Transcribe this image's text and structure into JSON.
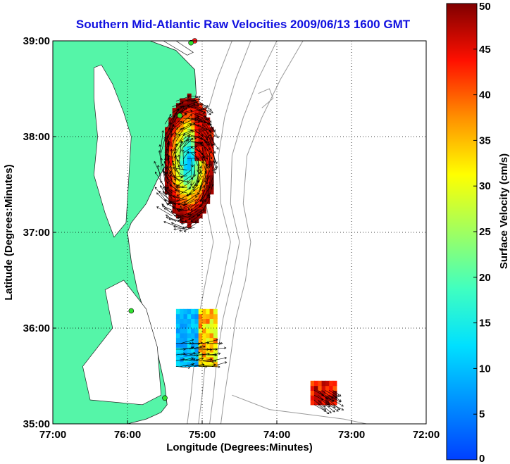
{
  "chart_data": {
    "type": "heatmap",
    "title": "Southern Mid-Atlantic Raw Velocities 2009/06/13 1600 GMT",
    "xlabel": "Longitude (Degrees:Minutes)",
    "ylabel": "Latitude (Degrees:Minutes)",
    "colorbar_label": "Surface Velocity (cm/s)",
    "xlim": [
      -77,
      -72
    ],
    "ylim": [
      35,
      39
    ],
    "clim": [
      0,
      50
    ],
    "x_ticks": [
      {
        "value": -77,
        "label": "77:00"
      },
      {
        "value": -76,
        "label": "76:00"
      },
      {
        "value": -75,
        "label": "75:00"
      },
      {
        "value": -74,
        "label": "74:00"
      },
      {
        "value": -73,
        "label": "73:00"
      },
      {
        "value": -72,
        "label": "72:00"
      }
    ],
    "y_ticks": [
      {
        "value": 35,
        "label": "35:00"
      },
      {
        "value": 36,
        "label": "36:00"
      },
      {
        "value": 37,
        "label": "37:00"
      },
      {
        "value": 38,
        "label": "38:00"
      },
      {
        "value": 39,
        "label": "39:00"
      }
    ],
    "colorbar_ticks": [
      {
        "value": 0,
        "label": "0"
      },
      {
        "value": 5,
        "label": "5"
      },
      {
        "value": 10,
        "label": "10"
      },
      {
        "value": 15,
        "label": "15"
      },
      {
        "value": 20,
        "label": "20"
      },
      {
        "value": 25,
        "label": "25"
      },
      {
        "value": 30,
        "label": "30"
      },
      {
        "value": 35,
        "label": "35"
      },
      {
        "value": 40,
        "label": "40"
      },
      {
        "value": 45,
        "label": "45"
      },
      {
        "value": 50,
        "label": "50"
      }
    ],
    "grid": true,
    "grid_style": "dotted",
    "land_color": "#55f5a8",
    "colormap": "jet",
    "coastline": [
      [
        -77.0,
        39.0
      ],
      [
        -75.7,
        39.0
      ],
      [
        -75.35,
        38.9
      ],
      [
        -75.1,
        38.7
      ],
      [
        -75.08,
        38.45
      ],
      [
        -75.15,
        38.2
      ],
      [
        -75.3,
        37.95
      ],
      [
        -75.45,
        37.75
      ],
      [
        -75.6,
        37.55
      ],
      [
        -75.75,
        37.3
      ],
      [
        -75.95,
        37.1
      ],
      [
        -76.0,
        37.0
      ],
      [
        -75.95,
        36.7
      ],
      [
        -75.87,
        36.4
      ],
      [
        -75.75,
        36.12
      ],
      [
        -75.6,
        35.75
      ],
      [
        -75.5,
        35.4
      ],
      [
        -75.47,
        35.2
      ],
      [
        -75.55,
        35.12
      ],
      [
        -75.75,
        35.05
      ],
      [
        -76.0,
        35.0
      ],
      [
        -77.0,
        35.0
      ]
    ],
    "chesapeake_bay": [
      [
        -76.35,
        38.75
      ],
      [
        -76.2,
        38.55
      ],
      [
        -76.05,
        38.25
      ],
      [
        -75.95,
        38.0
      ],
      [
        -75.98,
        37.6
      ],
      [
        -76.02,
        37.1
      ],
      [
        -76.18,
        36.95
      ],
      [
        -76.3,
        37.2
      ],
      [
        -76.45,
        37.6
      ],
      [
        -76.4,
        38.0
      ],
      [
        -76.45,
        38.4
      ],
      [
        -76.45,
        38.72
      ]
    ],
    "delaware_bay": [
      [
        -75.52,
        39.0
      ],
      [
        -75.2,
        38.85
      ],
      [
        -75.12,
        38.88
      ],
      [
        -75.35,
        39.0
      ]
    ],
    "sounds": [
      [
        -76.05,
        36.5
      ],
      [
        -75.75,
        36.2
      ],
      [
        -75.6,
        35.8
      ],
      [
        -75.55,
        35.3
      ],
      [
        -75.8,
        35.2
      ],
      [
        -76.5,
        35.25
      ],
      [
        -76.6,
        35.6
      ],
      [
        -76.2,
        36.0
      ],
      [
        -76.3,
        36.4
      ]
    ],
    "bathymetry_contours": [
      [
        [
          -74.6,
          39.0
        ],
        [
          -74.8,
          38.6
        ],
        [
          -74.95,
          38.2
        ],
        [
          -75.0,
          37.8
        ],
        [
          -74.95,
          37.3
        ],
        [
          -74.85,
          36.9
        ],
        [
          -74.95,
          36.5
        ],
        [
          -75.05,
          36.1
        ],
        [
          -75.1,
          35.7
        ],
        [
          -75.15,
          35.3
        ],
        [
          -75.2,
          35.0
        ]
      ],
      [
        [
          -74.35,
          39.0
        ],
        [
          -74.55,
          38.6
        ],
        [
          -74.7,
          38.2
        ],
        [
          -74.78,
          37.8
        ],
        [
          -74.75,
          37.3
        ],
        [
          -74.62,
          36.9
        ],
        [
          -74.72,
          36.5
        ],
        [
          -74.85,
          36.1
        ],
        [
          -74.95,
          35.7
        ],
        [
          -75.0,
          35.3
        ],
        [
          -75.05,
          35.0
        ]
      ],
      [
        [
          -74.0,
          39.0
        ],
        [
          -74.25,
          38.6
        ],
        [
          -74.45,
          38.2
        ],
        [
          -74.6,
          37.8
        ],
        [
          -74.62,
          37.3
        ],
        [
          -74.5,
          36.9
        ],
        [
          -74.6,
          36.5
        ],
        [
          -74.72,
          36.1
        ],
        [
          -74.8,
          35.7
        ],
        [
          -74.85,
          35.3
        ],
        [
          -74.9,
          35.0
        ]
      ],
      [
        [
          -73.65,
          39.0
        ],
        [
          -73.95,
          38.6
        ],
        [
          -74.2,
          38.2
        ],
        [
          -74.4,
          37.8
        ],
        [
          -74.45,
          37.3
        ],
        [
          -74.35,
          36.9
        ],
        [
          -74.42,
          36.5
        ],
        [
          -74.55,
          36.1
        ],
        [
          -74.62,
          35.7
        ],
        [
          -74.7,
          35.3
        ],
        [
          -74.75,
          35.0
        ]
      ],
      [
        [
          -74.2,
          38.3
        ],
        [
          -74.05,
          38.4
        ],
        [
          -74.1,
          38.5
        ],
        [
          -74.25,
          38.45
        ]
      ],
      [
        [
          -74.6,
          35.3
        ],
        [
          -74.1,
          35.15
        ],
        [
          -73.6,
          35.1
        ],
        [
          -73.1,
          35.05
        ],
        [
          -72.8,
          35.0
        ]
      ]
    ],
    "radial_sites": [
      {
        "lon": -75.1,
        "lat": 39.0
      },
      {
        "lon": -75.15,
        "lat": 38.98
      },
      {
        "lon": -75.3,
        "lat": 38.22
      },
      {
        "lon": -75.95,
        "lat": 36.18
      },
      {
        "lon": -75.5,
        "lat": 35.27
      }
    ],
    "velocity_regions": [
      {
        "lon_min": -75.55,
        "lon_max": -74.85,
        "lat_min": 37.05,
        "lat_max": 38.4,
        "type": "eddy"
      },
      {
        "lon_min": -75.35,
        "lon_max": -74.85,
        "lat_min": 35.6,
        "lat_max": 36.15,
        "type": "patch"
      },
      {
        "lon_min": -73.55,
        "lon_max": -73.25,
        "lat_min": 35.2,
        "lat_max": 35.4,
        "type": "patch"
      }
    ]
  }
}
